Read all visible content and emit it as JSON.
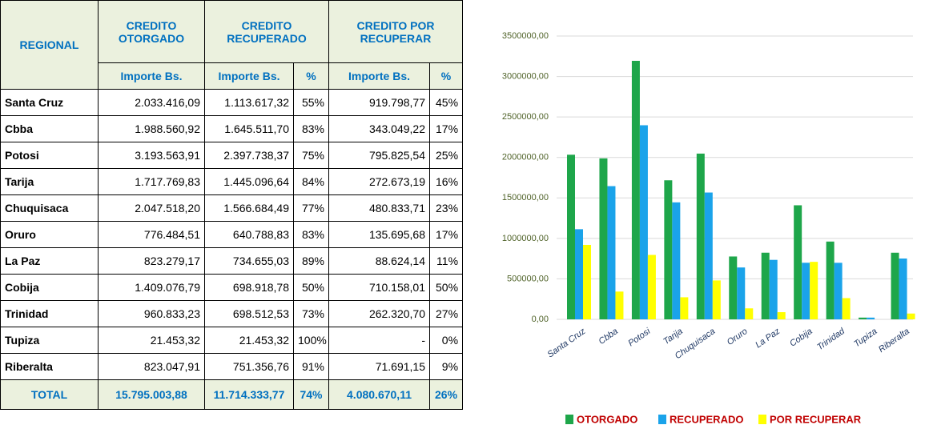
{
  "table": {
    "header1": [
      "REGIONAL",
      "CREDITO OTORGADO",
      "CREDITO RECUPERADO",
      "CREDITO POR RECUPERAR"
    ],
    "header2": [
      "Importe Bs.",
      "Importe Bs.",
      "%",
      "Importe Bs.",
      "%"
    ],
    "rows": [
      [
        "Santa Cruz",
        "2.033.416,09",
        "1.113.617,32",
        "55%",
        "919.798,77",
        "45%"
      ],
      [
        "Cbba",
        "1.988.560,92",
        "1.645.511,70",
        "83%",
        "343.049,22",
        "17%"
      ],
      [
        "Potosi",
        "3.193.563,91",
        "2.397.738,37",
        "75%",
        "795.825,54",
        "25%"
      ],
      [
        "Tarija",
        "1.717.769,83",
        "1.445.096,64",
        "84%",
        "272.673,19",
        "16%"
      ],
      [
        "Chuquisaca",
        "2.047.518,20",
        "1.566.684,49",
        "77%",
        "480.833,71",
        "23%"
      ],
      [
        "Oruro",
        "776.484,51",
        "640.788,83",
        "83%",
        "135.695,68",
        "17%"
      ],
      [
        "La Paz",
        "823.279,17",
        "734.655,03",
        "89%",
        "88.624,14",
        "11%"
      ],
      [
        "Cobija",
        "1.409.076,79",
        "698.918,78",
        "50%",
        "710.158,01",
        "50%"
      ],
      [
        "Trinidad",
        "960.833,23",
        "698.512,53",
        "73%",
        "262.320,70",
        "27%"
      ],
      [
        "Tupiza",
        "21.453,32",
        "21.453,32",
        "100%",
        "-",
        "0%"
      ],
      [
        "Riberalta",
        "823.047,91",
        "751.356,76",
        "91%",
        "71.691,15",
        "9%"
      ]
    ],
    "total": [
      "TOTAL",
      "15.795.003,88",
      "11.714.333,77",
      "74%",
      "4.080.670,11",
      "26%"
    ]
  },
  "chart_data": {
    "type": "bar",
    "categories": [
      "Santa Cruz",
      "Cbba",
      "Potosi",
      "Tarija",
      "Chuquisaca",
      "Oruro",
      "La Paz",
      "Cobija",
      "Trinidad",
      "Tupiza",
      "Riberalta"
    ],
    "series": [
      {
        "name": "OTORGADO",
        "color": "#1ea64a",
        "values": [
          2033416.09,
          1988560.92,
          3193563.91,
          1717769.83,
          2047518.2,
          776484.51,
          823279.17,
          1409076.79,
          960833.23,
          21453.32,
          823047.91
        ]
      },
      {
        "name": "RECUPERADO",
        "color": "#1aa3ea",
        "values": [
          1113617.32,
          1645511.7,
          2397738.37,
          1445096.64,
          1566684.49,
          640788.83,
          734655.03,
          698918.78,
          698512.53,
          21453.32,
          751356.76
        ]
      },
      {
        "name": "POR RECUPERAR",
        "color": "#ffff00",
        "values": [
          919798.77,
          343049.22,
          795825.54,
          272673.19,
          480833.71,
          135695.68,
          88624.14,
          710158.01,
          262320.7,
          0,
          71691.15
        ]
      }
    ],
    "ylim": [
      0,
      3500000
    ],
    "yticks": [
      {
        "value": 0,
        "label": "0,00"
      },
      {
        "value": 500000,
        "label": "500000,00"
      },
      {
        "value": 1000000,
        "label": "1000000,00"
      },
      {
        "value": 1500000,
        "label": "1500000,00"
      },
      {
        "value": 2000000,
        "label": "2000000,00"
      },
      {
        "value": 2500000,
        "label": "2500000,00"
      },
      {
        "value": 3000000,
        "label": "3000000,00"
      },
      {
        "value": 3500000,
        "label": "3500000,00"
      }
    ],
    "grid": true,
    "legend": "bottom"
  }
}
